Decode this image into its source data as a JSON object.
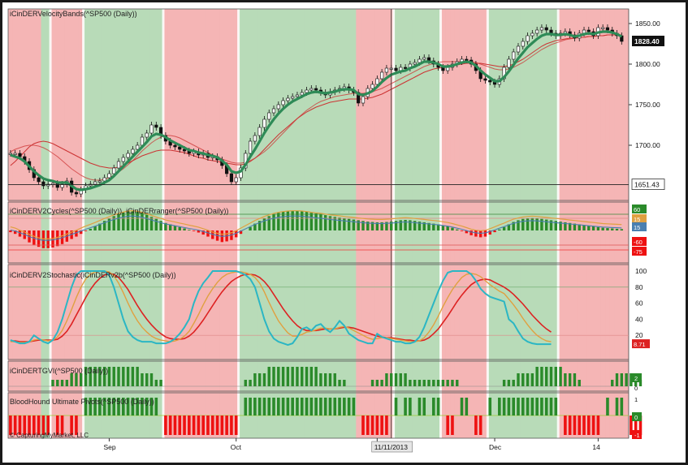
{
  "chart_data": {
    "type": "line",
    "title": "iCinDERVelocityBands(^SP500 (Daily))",
    "xaxis": {
      "month_labels": [
        "Sep",
        "Oct",
        "Nov",
        "Dec",
        "14"
      ],
      "cursor_date": "11/11/2013"
    },
    "price_panel": {
      "title": "iCinDERVelocityBands(^SP500 (Daily))",
      "ylim": [
        1640,
        1860
      ],
      "yticks": [
        "1850.00",
        "1800.00",
        "1750.00",
        "1700.00"
      ],
      "last_price_label": "1828.40",
      "crosshair_label": "1651.43",
      "crosshair_value": 1651.43,
      "closes": [
        1690,
        1690,
        1686,
        1680,
        1670,
        1660,
        1655,
        1650,
        1652,
        1653,
        1648,
        1652,
        1656,
        1642,
        1640,
        1645,
        1650,
        1652,
        1655,
        1656,
        1660,
        1665,
        1672,
        1680,
        1685,
        1690,
        1695,
        1700,
        1710,
        1715,
        1725,
        1722,
        1712,
        1705,
        1700,
        1698,
        1695,
        1693,
        1690,
        1692,
        1688,
        1690,
        1685,
        1686,
        1682,
        1675,
        1665,
        1655,
        1660,
        1672,
        1690,
        1705,
        1712,
        1722,
        1732,
        1740,
        1745,
        1750,
        1755,
        1758,
        1760,
        1762,
        1765,
        1768,
        1770,
        1768,
        1765,
        1762,
        1766,
        1768,
        1770,
        1772,
        1768,
        1765,
        1752,
        1760,
        1770,
        1775,
        1782,
        1790,
        1795,
        1795,
        1792,
        1796,
        1795,
        1800,
        1802,
        1806,
        1808,
        1804,
        1800,
        1796,
        1792,
        1796,
        1800,
        1803,
        1806,
        1805,
        1800,
        1792,
        1782,
        1780,
        1778,
        1775,
        1782,
        1796,
        1806,
        1815,
        1822,
        1828,
        1835,
        1838,
        1842,
        1845,
        1842,
        1838,
        1835,
        1838,
        1840,
        1836,
        1832,
        1838,
        1842,
        1840,
        1835,
        1845,
        1845,
        1842,
        1838,
        1835,
        1828
      ],
      "velocity_line": [
        1688,
        1686,
        1684,
        1680,
        1674,
        1668,
        1663,
        1659,
        1657,
        1656,
        1654,
        1654,
        1654,
        1650,
        1646,
        1645,
        1646,
        1647,
        1649,
        1651,
        1654,
        1657,
        1662,
        1668,
        1674,
        1680,
        1686,
        1692,
        1698,
        1704,
        1711,
        1714,
        1713,
        1710,
        1706,
        1703,
        1700,
        1697,
        1694,
        1693,
        1691,
        1690,
        1688,
        1687,
        1685,
        1681,
        1676,
        1668,
        1666,
        1668,
        1676,
        1686,
        1695,
        1705,
        1715,
        1724,
        1732,
        1739,
        1745,
        1750,
        1754,
        1757,
        1760,
        1763,
        1765,
        1766,
        1765,
        1764,
        1765,
        1766,
        1768,
        1769,
        1769,
        1768,
        1763,
        1762,
        1764,
        1767,
        1772,
        1778,
        1783,
        1787,
        1789,
        1791,
        1792,
        1795,
        1797,
        1800,
        1803,
        1803,
        1802,
        1800,
        1797,
        1797,
        1798,
        1800,
        1802,
        1803,
        1802,
        1798,
        1792,
        1787,
        1783,
        1779,
        1779,
        1784,
        1791,
        1799,
        1807,
        1814,
        1821,
        1826,
        1831,
        1835,
        1837,
        1837,
        1836,
        1836,
        1837,
        1836,
        1834,
        1835,
        1837,
        1838,
        1837,
        1839,
        1840,
        1840,
        1839,
        1837,
        1834
      ],
      "slow_band": [
        1675,
        1680,
        1686,
        1692,
        1698,
        1702,
        1704,
        1705,
        1704,
        1702,
        1699,
        1696,
        1693,
        1690,
        1687,
        1684,
        1681,
        1678,
        1676,
        1674,
        1673,
        1672,
        1672,
        1673,
        1675,
        1678,
        1681,
        1684,
        1687,
        1689,
        1691,
        1693,
        1694,
        1694,
        1694,
        1693,
        1692,
        1691,
        1689,
        1687,
        1685,
        1684,
        1682,
        1681,
        1680,
        1679,
        1678,
        1677,
        1676,
        1676,
        1677,
        1680,
        1684,
        1689,
        1695,
        1701,
        1707,
        1713,
        1718,
        1723,
        1728,
        1733,
        1737,
        1741,
        1744,
        1747,
        1749,
        1751,
        1753,
        1754,
        1755,
        1756,
        1757,
        1757,
        1757,
        1757,
        1758,
        1759,
        1761,
        1763,
        1766,
        1769,
        1772,
        1775,
        1778,
        1781,
        1784,
        1787,
        1790,
        1792,
        1794,
        1795,
        1796,
        1797,
        1798,
        1799,
        1800,
        1801,
        1801,
        1801,
        1801,
        1800,
        1799,
        1798,
        1797,
        1797,
        1798,
        1800,
        1803,
        1806,
        1810,
        1814,
        1818,
        1822,
        1825,
        1827,
        1829,
        1830,
        1831,
        1832,
        1832,
        1833,
        1833,
        1834,
        1834,
        1835,
        1835,
        1836,
        1836,
        1836,
        1836
      ],
      "fast_band": [
        1692,
        1695,
        1697,
        1699,
        1700,
        1700,
        1699,
        1697,
        1694,
        1690,
        1686,
        1681,
        1676,
        1671,
        1667,
        1663,
        1660,
        1658,
        1657,
        1657,
        1658,
        1660,
        1663,
        1667,
        1671,
        1676,
        1681,
        1687,
        1693,
        1698,
        1703,
        1707,
        1710,
        1712,
        1712,
        1711,
        1709,
        1706,
        1703,
        1700,
        1697,
        1694,
        1691,
        1688,
        1686,
        1683,
        1681,
        1679,
        1678,
        1678,
        1679,
        1681,
        1684,
        1688,
        1692,
        1697,
        1703,
        1709,
        1715,
        1721,
        1727,
        1733,
        1738,
        1743,
        1747,
        1751,
        1754,
        1756,
        1758,
        1760,
        1761,
        1762,
        1763,
        1764,
        1764,
        1764,
        1765,
        1766,
        1768,
        1770,
        1773,
        1776,
        1779,
        1782,
        1785,
        1788,
        1791,
        1794,
        1797,
        1799,
        1801,
        1802,
        1803,
        1803,
        1803,
        1803,
        1803,
        1803,
        1803,
        1802,
        1800,
        1798,
        1796,
        1794,
        1793,
        1793,
        1794,
        1796,
        1799,
        1802,
        1806,
        1810,
        1814,
        1818,
        1821,
        1824,
        1826,
        1828,
        1830,
        1831,
        1832,
        1833,
        1833,
        1834,
        1834,
        1835,
        1835,
        1836,
        1836,
        1836,
        1836
      ]
    },
    "background_regime": [
      0,
      0,
      0,
      0,
      0,
      0,
      0,
      1,
      1,
      0,
      0,
      0,
      0,
      0,
      0,
      0,
      1,
      1,
      1,
      1,
      1,
      1,
      1,
      1,
      1,
      1,
      1,
      1,
      1,
      1,
      1,
      1,
      1,
      0,
      0,
      0,
      0,
      0,
      0,
      0,
      0,
      0,
      0,
      0,
      0,
      0,
      0,
      0,
      0,
      1,
      1,
      1,
      1,
      1,
      1,
      1,
      1,
      1,
      1,
      1,
      1,
      1,
      1,
      1,
      1,
      1,
      1,
      1,
      1,
      1,
      1,
      1,
      1,
      1,
      0,
      0,
      0,
      0,
      0,
      0,
      0,
      0,
      1,
      1,
      1,
      1,
      1,
      1,
      1,
      1,
      1,
      1,
      0,
      0,
      0,
      0,
      0,
      0,
      0,
      0,
      0,
      0,
      1,
      1,
      1,
      1,
      1,
      1,
      1,
      1,
      1,
      1,
      1,
      1,
      1,
      1,
      1,
      0,
      0,
      0,
      0,
      0,
      0,
      0,
      0,
      0,
      0,
      0,
      0,
      0,
      0,
      0
    ],
    "cycles_panel": {
      "title": "iCinDERV2Cycles(^SP500 (Daily)), iCinDERranger(^SP500 (Daily))",
      "right_labels": [
        "60",
        "15",
        "15",
        "-60",
        "-75"
      ],
      "bars": [
        -5,
        -10,
        -18,
        -25,
        -35,
        -42,
        -48,
        -52,
        -52,
        -50,
        -46,
        -40,
        -33,
        -25,
        -18,
        -10,
        -2,
        5,
        12,
        20,
        28,
        35,
        42,
        48,
        53,
        57,
        58,
        56,
        52,
        46,
        40,
        34,
        28,
        22,
        18,
        14,
        10,
        6,
        2,
        -2,
        -6,
        -12,
        -18,
        -25,
        -30,
        -34,
        -32,
        -28,
        -20,
        -10,
        0,
        10,
        20,
        28,
        36,
        42,
        48,
        52,
        55,
        57,
        58,
        58,
        57,
        55,
        52,
        50,
        48,
        45,
        42,
        40,
        38,
        36,
        34,
        32,
        30,
        28,
        26,
        25,
        24,
        24,
        25,
        26,
        28,
        30,
        31,
        30,
        28,
        26,
        24,
        22,
        20,
        18,
        15,
        12,
        8,
        3,
        -2,
        -8,
        -14,
        -18,
        -20,
        -18,
        -12,
        -5,
        3,
        10,
        18,
        25,
        30,
        34,
        36,
        37,
        36,
        34,
        32,
        30,
        28,
        26,
        24,
        22,
        20,
        18,
        16,
        14,
        12,
        10,
        8,
        7,
        6,
        5,
        4
      ]
    },
    "stochastic_panel": {
      "title": "iCinDERV2Stochastic(iCinDERv2b(^SP500 (Daily))",
      "ylim": [
        0,
        100
      ],
      "yticks": [
        "100",
        "80",
        "60",
        "40",
        "20"
      ],
      "last_value_label": "8.71",
      "cyan": [
        14,
        12,
        10,
        10,
        12,
        20,
        16,
        12,
        10,
        14,
        24,
        40,
        60,
        80,
        95,
        100,
        100,
        100,
        100,
        100,
        100,
        95,
        80,
        60,
        40,
        25,
        18,
        14,
        12,
        12,
        12,
        10,
        10,
        10,
        12,
        16,
        22,
        30,
        40,
        60,
        75,
        85,
        92,
        100,
        100,
        100,
        100,
        100,
        100,
        98,
        95,
        90,
        80,
        60,
        40,
        25,
        16,
        12,
        10,
        8,
        10,
        18,
        28,
        30,
        26,
        32,
        34,
        28,
        24,
        30,
        38,
        32,
        22,
        18,
        14,
        12,
        10,
        10,
        22,
        18,
        16,
        14,
        12,
        12,
        10,
        10,
        12,
        18,
        30,
        45,
        60,
        75,
        88,
        98,
        100,
        100,
        100,
        100,
        96,
        88,
        78,
        72,
        68,
        66,
        64,
        62,
        40,
        35,
        25,
        16,
        12,
        10,
        9,
        9,
        9,
        9
      ],
      "orange": [
        12,
        12,
        11,
        11,
        12,
        14,
        15,
        14,
        13,
        14,
        18,
        26,
        38,
        52,
        67,
        80,
        90,
        96,
        99,
        100,
        100,
        99,
        94,
        85,
        73,
        60,
        48,
        38,
        30,
        24,
        19,
        16,
        14,
        13,
        12,
        13,
        15,
        19,
        25,
        35,
        46,
        58,
        69,
        78,
        86,
        92,
        96,
        98,
        99,
        99,
        98,
        96,
        92,
        85,
        74,
        61,
        49,
        38,
        30,
        23,
        19,
        19,
        21,
        24,
        25,
        27,
        29,
        29,
        28,
        28,
        30,
        31,
        29,
        26,
        23,
        20,
        17,
        15,
        16,
        17,
        17,
        16,
        15,
        14,
        13,
        12,
        12,
        13,
        17,
        24,
        33,
        44,
        56,
        67,
        77,
        85,
        92,
        96,
        97,
        96,
        93,
        88,
        83,
        79,
        75,
        72,
        65,
        58,
        50,
        41,
        33,
        26,
        20,
        16,
        13,
        12
      ],
      "red": [
        13,
        13,
        12,
        12,
        12,
        13,
        14,
        14,
        14,
        14,
        15,
        19,
        25,
        34,
        45,
        56,
        67,
        77,
        85,
        91,
        95,
        97,
        96,
        92,
        85,
        77,
        67,
        57,
        48,
        40,
        33,
        27,
        22,
        18,
        16,
        15,
        15,
        16,
        19,
        24,
        31,
        39,
        48,
        57,
        66,
        74,
        81,
        87,
        91,
        94,
        96,
        96,
        95,
        92,
        87,
        80,
        71,
        62,
        53,
        45,
        38,
        32,
        28,
        26,
        26,
        26,
        27,
        28,
        28,
        28,
        29,
        30,
        30,
        29,
        27,
        25,
        23,
        21,
        19,
        18,
        17,
        17,
        16,
        15,
        14,
        14,
        13,
        13,
        14,
        17,
        22,
        28,
        36,
        44,
        53,
        62,
        70,
        77,
        83,
        87,
        89,
        90,
        89,
        86,
        83,
        80,
        76,
        71,
        65,
        59,
        52,
        45,
        39,
        33,
        28,
        24
      ]
    },
    "gvi_panel": {
      "title": "iCinDERTGVI(^SP500 (Daily))",
      "right_labels": [
        "2",
        "0"
      ],
      "bars": [
        0,
        0,
        0,
        0,
        0,
        0,
        0,
        0,
        0,
        1,
        1,
        1,
        1,
        2,
        2,
        2,
        3,
        3,
        3,
        3,
        3,
        3,
        3,
        3,
        3,
        3,
        3,
        3,
        2,
        2,
        2,
        1,
        1,
        0,
        0,
        0,
        0,
        0,
        0,
        0,
        0,
        0,
        0,
        0,
        0,
        0,
        0,
        0,
        0,
        0,
        1,
        1,
        2,
        2,
        2,
        3,
        3,
        3,
        3,
        3,
        3,
        3,
        3,
        3,
        3,
        3,
        2,
        2,
        2,
        2,
        1,
        1,
        0,
        0,
        0,
        0,
        0,
        1,
        1,
        1,
        2,
        2,
        2,
        2,
        2,
        1,
        1,
        1,
        1,
        1,
        1,
        1,
        1,
        1,
        1,
        1,
        0,
        0,
        0,
        0,
        0,
        0,
        0,
        0,
        0,
        1,
        1,
        1,
        2,
        2,
        2,
        2,
        3,
        3,
        3,
        3,
        3,
        3,
        2,
        2,
        2,
        1,
        0,
        0,
        0,
        0,
        0,
        0,
        1,
        2,
        2,
        2,
        2,
        2,
        1
      ]
    },
    "bloodhound_panel": {
      "title": "BloodHound Ultimate Pivots(^SP500 (Daily))",
      "copyright": "© CapturingMyMarket, LLC",
      "right_labels": [
        "1",
        "0",
        "-1"
      ],
      "signals": [
        -1,
        -1,
        -1,
        -1,
        -1,
        -1,
        -1,
        -1,
        -1,
        0,
        -1,
        -1,
        0,
        -1,
        -1,
        0,
        1,
        1,
        1,
        1,
        1,
        1,
        1,
        1,
        1,
        1,
        1,
        1,
        1,
        1,
        1,
        1,
        0,
        -1,
        -1,
        -1,
        -1,
        -1,
        -1,
        -1,
        -1,
        -1,
        -1,
        -1,
        -1,
        -1,
        -1,
        -1,
        -1,
        0,
        1,
        1,
        1,
        1,
        1,
        1,
        1,
        1,
        1,
        1,
        1,
        1,
        1,
        1,
        1,
        1,
        1,
        1,
        1,
        1,
        1,
        1,
        1,
        1,
        0,
        -1,
        -1,
        -1,
        -1,
        -1,
        -1,
        0,
        1,
        0,
        1,
        1,
        0,
        1,
        1,
        0,
        1,
        1,
        0,
        -1,
        -1,
        0,
        1,
        1,
        0,
        -1,
        -1,
        0,
        1,
        0,
        1,
        1,
        1,
        1,
        1,
        1,
        1,
        1,
        1,
        1,
        1,
        1,
        1,
        0,
        -1,
        -1,
        -1,
        -1,
        -1,
        -1,
        -1,
        -1,
        0,
        1,
        0,
        1,
        1,
        0,
        -1,
        -1,
        -1
      ]
    },
    "colors": {
      "bull_background": "#b8dbb8",
      "bear_background": "#f5b5b5",
      "velocity_green": "#2e8b57",
      "slow_band_red": "#cc3333",
      "stoch_cyan": "#2bb6c4",
      "stoch_orange": "#e0a040",
      "stoch_red": "#dd2222",
      "bar_green": "#2a8a2a",
      "bar_red": "#ee1111"
    }
  }
}
